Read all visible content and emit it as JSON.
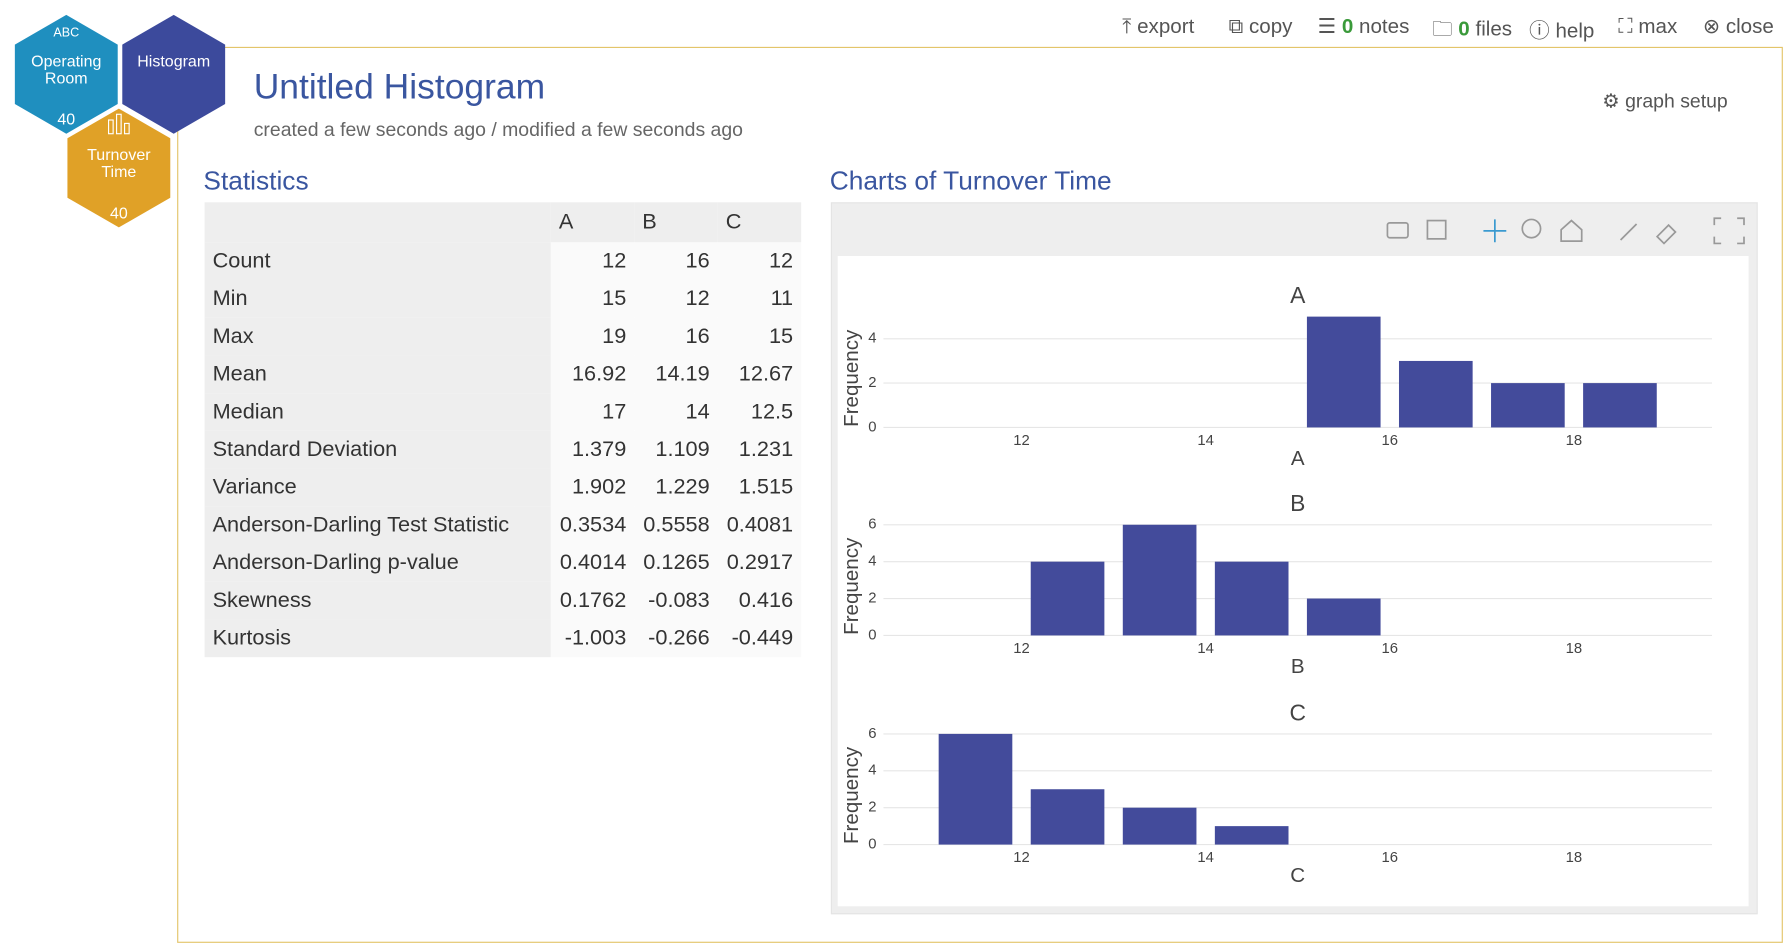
{
  "toolbar": {
    "export": "export",
    "copy": "copy",
    "notes_count": 0,
    "notes": "notes",
    "files_count": 0,
    "files": "files",
    "help": "help",
    "max": "max",
    "close": "close"
  },
  "nav": {
    "operating_room": {
      "tag": "ABC",
      "label": "Operating Room",
      "count": 40
    },
    "histogram": {
      "label": "Histogram"
    },
    "turnover_time": {
      "label": "Turnover Time",
      "count": 40
    }
  },
  "header": {
    "title": "Untitled Histogram",
    "subtitle": "created a few seconds ago / modified a few seconds ago",
    "graph_setup": "graph setup"
  },
  "statistics": {
    "title": "Statistics",
    "columns": [
      "A",
      "B",
      "C"
    ],
    "rows": [
      {
        "label": "Count",
        "values": [
          12,
          16,
          12
        ]
      },
      {
        "label": "Min",
        "values": [
          15,
          12,
          11
        ]
      },
      {
        "label": "Max",
        "values": [
          19,
          16,
          15
        ]
      },
      {
        "label": "Mean",
        "values": [
          16.92,
          14.19,
          12.67
        ]
      },
      {
        "label": "Median",
        "values": [
          17,
          14,
          12.5
        ]
      },
      {
        "label": "Standard Deviation",
        "values": [
          1.379,
          1.109,
          1.231
        ]
      },
      {
        "label": "Variance",
        "values": [
          1.902,
          1.229,
          1.515
        ]
      },
      {
        "label": "Anderson-Darling Test Statistic",
        "values": [
          0.3534,
          0.5558,
          0.4081
        ]
      },
      {
        "label": "Anderson-Darling p-value",
        "values": [
          0.4014,
          0.1265,
          0.2917
        ]
      },
      {
        "label": "Skewness",
        "values": [
          0.1762,
          -0.083,
          0.416
        ]
      },
      {
        "label": "Kurtosis",
        "values": [
          -1.003,
          -0.266,
          -0.449
        ]
      }
    ]
  },
  "charts_title": "Charts of Turnover Time",
  "chart_data": [
    {
      "type": "histogram",
      "title": "A",
      "x_label": "A",
      "y_label": "Frequency",
      "bins": [
        15,
        16,
        17,
        18,
        19
      ],
      "values": [
        5,
        3,
        2,
        2
      ],
      "color": "#434b9b",
      "xlim": [
        10.5,
        19.5
      ],
      "ylim": [
        0,
        5.26
      ],
      "xticks": [
        12,
        14,
        16,
        18
      ],
      "yticks": [
        0,
        2,
        4
      ],
      "grid": true
    },
    {
      "type": "histogram",
      "title": "B",
      "x_label": "B",
      "y_label": "Frequency",
      "bins": [
        12,
        13,
        14,
        15,
        16
      ],
      "values": [
        4,
        6,
        4,
        2
      ],
      "color": "#434b9b",
      "xlim": [
        10.5,
        19.5
      ],
      "ylim": [
        0,
        6.32
      ],
      "xticks": [
        12,
        14,
        16,
        18
      ],
      "yticks": [
        0,
        2,
        4,
        6
      ],
      "grid": true
    },
    {
      "type": "histogram",
      "title": "C",
      "x_label": "C",
      "y_label": "Frequency",
      "bins": [
        11,
        12,
        13,
        14,
        15
      ],
      "values": [
        6,
        3,
        2,
        1
      ],
      "color": "#434b9b",
      "xlim": [
        10.5,
        19.5
      ],
      "ylim": [
        0,
        6.32
      ],
      "xticks": [
        12,
        14,
        16,
        18
      ],
      "yticks": [
        0,
        2,
        4,
        6
      ],
      "grid": true
    }
  ]
}
